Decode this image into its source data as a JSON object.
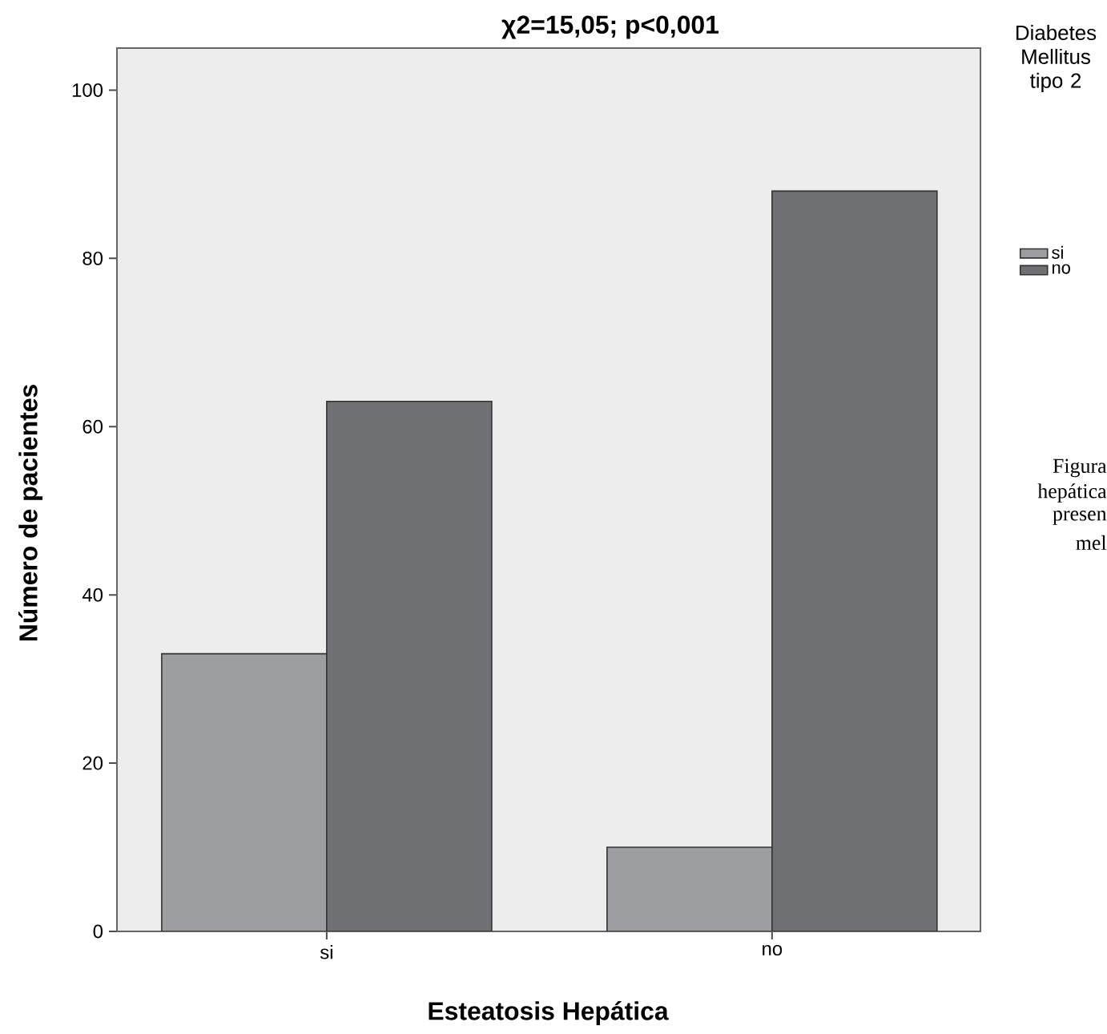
{
  "chart_data": {
    "type": "bar",
    "title": "χ2=15,05; p<0,001",
    "xlabel": "Esteatosis Hepática",
    "ylabel": "Número de pacientes",
    "legend_title": "Diabetes Mellitus tipo 2",
    "categories": [
      "si",
      "no"
    ],
    "series": [
      {
        "name": "si",
        "color": "#9d9ea2",
        "values": [
          33,
          10
        ]
      },
      {
        "name": "no",
        "color": "#6f7074",
        "values": [
          63,
          88
        ]
      }
    ],
    "ylim": [
      0,
      105
    ],
    "yticks": [
      0,
      20,
      40,
      60,
      80,
      100
    ],
    "legend": "right",
    "grid": false,
    "annotations": [
      "Figura",
      "hepática",
      "presen",
      "mel"
    ]
  }
}
